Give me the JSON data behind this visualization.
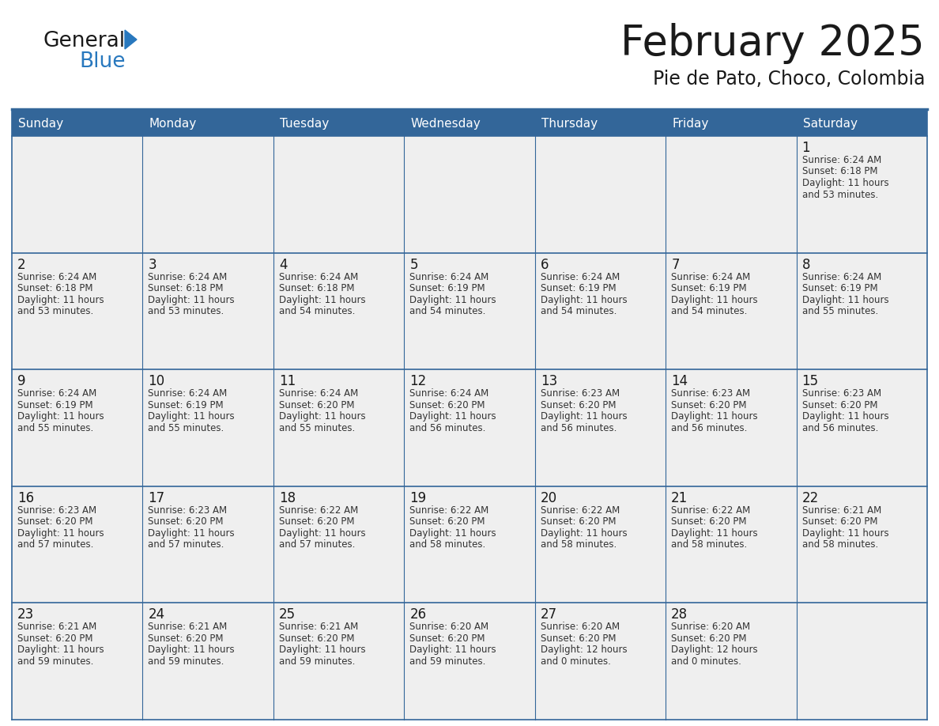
{
  "title": "February 2025",
  "subtitle": "Pie de Pato, Choco, Colombia",
  "header_bg": "#336699",
  "header_text_color": "#FFFFFF",
  "cell_bg": "#EFEFEF",
  "empty_cell_bg": "#FFFFFF",
  "day_headers": [
    "Sunday",
    "Monday",
    "Tuesday",
    "Wednesday",
    "Thursday",
    "Friday",
    "Saturday"
  ],
  "title_color": "#1a1a1a",
  "subtitle_color": "#1a1a1a",
  "line_color": "#336699",
  "text_color": "#333333",
  "day_num_color": "#1a1a1a",
  "logo_general_color": "#1a1a1a",
  "logo_blue_color": "#2878BE",
  "weeks": [
    [
      null,
      null,
      null,
      null,
      null,
      null,
      1
    ],
    [
      2,
      3,
      4,
      5,
      6,
      7,
      8
    ],
    [
      9,
      10,
      11,
      12,
      13,
      14,
      15
    ],
    [
      16,
      17,
      18,
      19,
      20,
      21,
      22
    ],
    [
      23,
      24,
      25,
      26,
      27,
      28,
      null
    ]
  ],
  "cell_data": {
    "1": {
      "sunrise": "6:24 AM",
      "sunset": "6:18 PM",
      "daylight_line1": "Daylight: 11 hours",
      "daylight_line2": "and 53 minutes."
    },
    "2": {
      "sunrise": "6:24 AM",
      "sunset": "6:18 PM",
      "daylight_line1": "Daylight: 11 hours",
      "daylight_line2": "and 53 minutes."
    },
    "3": {
      "sunrise": "6:24 AM",
      "sunset": "6:18 PM",
      "daylight_line1": "Daylight: 11 hours",
      "daylight_line2": "and 53 minutes."
    },
    "4": {
      "sunrise": "6:24 AM",
      "sunset": "6:18 PM",
      "daylight_line1": "Daylight: 11 hours",
      "daylight_line2": "and 54 minutes."
    },
    "5": {
      "sunrise": "6:24 AM",
      "sunset": "6:19 PM",
      "daylight_line1": "Daylight: 11 hours",
      "daylight_line2": "and 54 minutes."
    },
    "6": {
      "sunrise": "6:24 AM",
      "sunset": "6:19 PM",
      "daylight_line1": "Daylight: 11 hours",
      "daylight_line2": "and 54 minutes."
    },
    "7": {
      "sunrise": "6:24 AM",
      "sunset": "6:19 PM",
      "daylight_line1": "Daylight: 11 hours",
      "daylight_line2": "and 54 minutes."
    },
    "8": {
      "sunrise": "6:24 AM",
      "sunset": "6:19 PM",
      "daylight_line1": "Daylight: 11 hours",
      "daylight_line2": "and 55 minutes."
    },
    "9": {
      "sunrise": "6:24 AM",
      "sunset": "6:19 PM",
      "daylight_line1": "Daylight: 11 hours",
      "daylight_line2": "and 55 minutes."
    },
    "10": {
      "sunrise": "6:24 AM",
      "sunset": "6:19 PM",
      "daylight_line1": "Daylight: 11 hours",
      "daylight_line2": "and 55 minutes."
    },
    "11": {
      "sunrise": "6:24 AM",
      "sunset": "6:20 PM",
      "daylight_line1": "Daylight: 11 hours",
      "daylight_line2": "and 55 minutes."
    },
    "12": {
      "sunrise": "6:24 AM",
      "sunset": "6:20 PM",
      "daylight_line1": "Daylight: 11 hours",
      "daylight_line2": "and 56 minutes."
    },
    "13": {
      "sunrise": "6:23 AM",
      "sunset": "6:20 PM",
      "daylight_line1": "Daylight: 11 hours",
      "daylight_line2": "and 56 minutes."
    },
    "14": {
      "sunrise": "6:23 AM",
      "sunset": "6:20 PM",
      "daylight_line1": "Daylight: 11 hours",
      "daylight_line2": "and 56 minutes."
    },
    "15": {
      "sunrise": "6:23 AM",
      "sunset": "6:20 PM",
      "daylight_line1": "Daylight: 11 hours",
      "daylight_line2": "and 56 minutes."
    },
    "16": {
      "sunrise": "6:23 AM",
      "sunset": "6:20 PM",
      "daylight_line1": "Daylight: 11 hours",
      "daylight_line2": "and 57 minutes."
    },
    "17": {
      "sunrise": "6:23 AM",
      "sunset": "6:20 PM",
      "daylight_line1": "Daylight: 11 hours",
      "daylight_line2": "and 57 minutes."
    },
    "18": {
      "sunrise": "6:22 AM",
      "sunset": "6:20 PM",
      "daylight_line1": "Daylight: 11 hours",
      "daylight_line2": "and 57 minutes."
    },
    "19": {
      "sunrise": "6:22 AM",
      "sunset": "6:20 PM",
      "daylight_line1": "Daylight: 11 hours",
      "daylight_line2": "and 58 minutes."
    },
    "20": {
      "sunrise": "6:22 AM",
      "sunset": "6:20 PM",
      "daylight_line1": "Daylight: 11 hours",
      "daylight_line2": "and 58 minutes."
    },
    "21": {
      "sunrise": "6:22 AM",
      "sunset": "6:20 PM",
      "daylight_line1": "Daylight: 11 hours",
      "daylight_line2": "and 58 minutes."
    },
    "22": {
      "sunrise": "6:21 AM",
      "sunset": "6:20 PM",
      "daylight_line1": "Daylight: 11 hours",
      "daylight_line2": "and 58 minutes."
    },
    "23": {
      "sunrise": "6:21 AM",
      "sunset": "6:20 PM",
      "daylight_line1": "Daylight: 11 hours",
      "daylight_line2": "and 59 minutes."
    },
    "24": {
      "sunrise": "6:21 AM",
      "sunset": "6:20 PM",
      "daylight_line1": "Daylight: 11 hours",
      "daylight_line2": "and 59 minutes."
    },
    "25": {
      "sunrise": "6:21 AM",
      "sunset": "6:20 PM",
      "daylight_line1": "Daylight: 11 hours",
      "daylight_line2": "and 59 minutes."
    },
    "26": {
      "sunrise": "6:20 AM",
      "sunset": "6:20 PM",
      "daylight_line1": "Daylight: 11 hours",
      "daylight_line2": "and 59 minutes."
    },
    "27": {
      "sunrise": "6:20 AM",
      "sunset": "6:20 PM",
      "daylight_line1": "Daylight: 12 hours",
      "daylight_line2": "and 0 minutes."
    },
    "28": {
      "sunrise": "6:20 AM",
      "sunset": "6:20 PM",
      "daylight_line1": "Daylight: 12 hours",
      "daylight_line2": "and 0 minutes."
    }
  }
}
